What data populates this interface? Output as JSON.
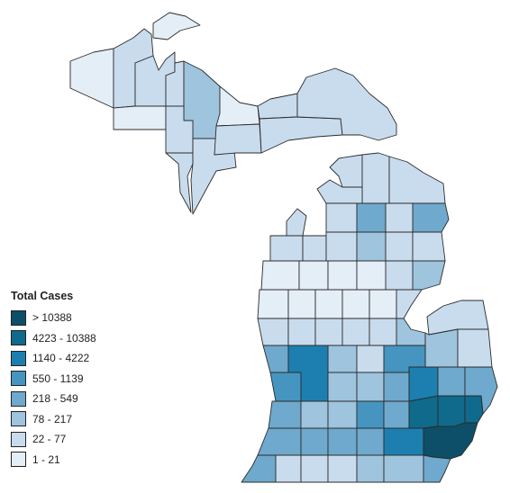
{
  "legend": {
    "title": "Total Cases",
    "bins": [
      {
        "label": "> 10388",
        "color": "#0d4f68"
      },
      {
        "label": "4223 - 10388",
        "color": "#0f6a8b"
      },
      {
        "label": "1140 - 4222",
        "color": "#1d7fb0"
      },
      {
        "label": "550 - 1139",
        "color": "#4595c0"
      },
      {
        "label": "218 - 549",
        "color": "#6fa9cd"
      },
      {
        "label": "78 - 217",
        "color": "#9ec4de"
      },
      {
        "label": "22 - 77",
        "color": "#c9dcee"
      },
      {
        "label": "1 - 21",
        "color": "#e4eef7"
      }
    ]
  },
  "map": {
    "region": "Michigan counties",
    "outline_color": "#2b2b2b",
    "background": "#ffffff"
  }
}
